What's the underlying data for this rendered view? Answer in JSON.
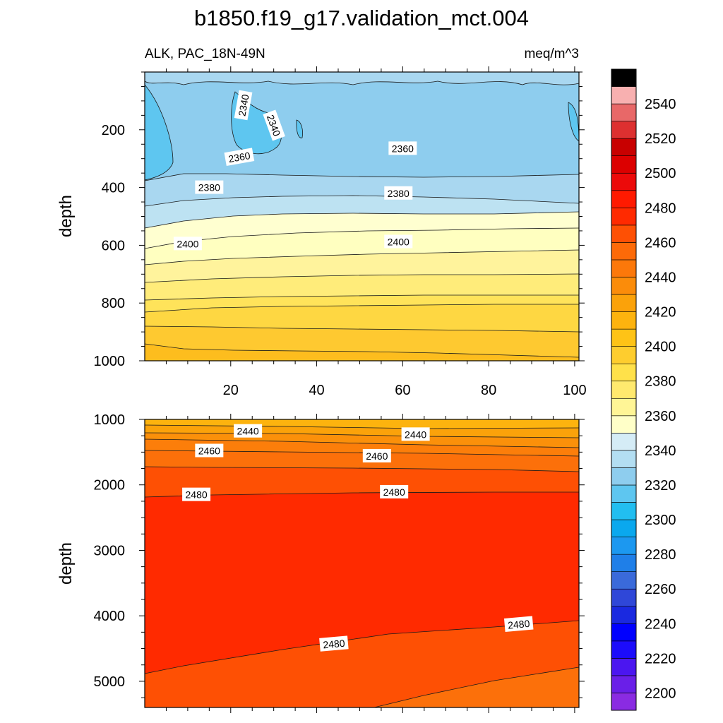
{
  "title": "b1850.f19_g17.validation_mct.004",
  "colors": {
    "levels": [
      "#8a2be2",
      "#6a1fe8",
      "#4b16f0",
      "#1c0cfb",
      "#0000ff",
      "#1a29e0",
      "#2f47d8",
      "#3a6ada",
      "#1f7fe8",
      "#1c98f0",
      "#0aa8ee",
      "#22bef0",
      "#5ec6f0",
      "#8ecdee",
      "#b3def2",
      "#d5ecf6",
      "#ffffc8",
      "#fff596",
      "#ffe96e",
      "#ffe14a",
      "#fecd2e",
      "#fec316",
      "#fdb30e",
      "#fba20a",
      "#fb8c0a",
      "#fc780a",
      "#fd6a08",
      "#fe5004",
      "#ff2a00",
      "#ff1a00",
      "#ec0a0a",
      "#dc0000",
      "#c80000",
      "#dd3030",
      "#e86868",
      "#f8b0b0"
    ],
    "frame": "#000000",
    "contour": "#1a1a1a"
  },
  "chart_data": [
    {
      "type": "contour",
      "panel": "upper",
      "left_title": "ALK, PAC_18N-49N",
      "right_title": "meq/m^3",
      "ylabel": "depth",
      "xlabel": "",
      "xlim": [
        0,
        101
      ],
      "ylim": [
        0,
        1000
      ],
      "y_reversed": true,
      "xticks": [
        20,
        40,
        60,
        80,
        100
      ],
      "yticks": [
        200,
        400,
        600,
        800,
        1000
      ],
      "contour_labels": [
        {
          "text": "2340",
          "x": 23,
          "y": 115,
          "rotate": -80
        },
        {
          "text": "2340",
          "x": 30,
          "y": 185,
          "rotate": 70
        },
        {
          "text": "2360",
          "x": 22,
          "y": 295,
          "rotate": -10
        },
        {
          "text": "2360",
          "x": 60,
          "y": 265,
          "rotate": 0
        },
        {
          "text": "2380",
          "x": 15,
          "y": 400,
          "rotate": 0
        },
        {
          "text": "2380",
          "x": 59,
          "y": 420,
          "rotate": 0
        },
        {
          "text": "2400",
          "x": 10,
          "y": 595,
          "rotate": 0
        },
        {
          "text": "2400",
          "x": 59,
          "y": 588,
          "rotate": 0
        }
      ]
    },
    {
      "type": "contour",
      "panel": "lower",
      "left_title": "",
      "right_title": "",
      "ylabel": "depth",
      "xlabel": "",
      "xlim": [
        0,
        101
      ],
      "ylim": [
        1000,
        5400
      ],
      "y_reversed": true,
      "xticks": [
        20,
        40,
        60,
        80,
        100
      ],
      "yticks": [
        1000,
        2000,
        3000,
        4000,
        5000
      ],
      "contour_labels": [
        {
          "text": "2440",
          "x": 24,
          "y": 1180,
          "rotate": 0
        },
        {
          "text": "2440",
          "x": 63,
          "y": 1230,
          "rotate": 0
        },
        {
          "text": "2460",
          "x": 15,
          "y": 1480,
          "rotate": 0
        },
        {
          "text": "2460",
          "x": 54,
          "y": 1560,
          "rotate": 0
        },
        {
          "text": "2480",
          "x": 12,
          "y": 2150,
          "rotate": 0
        },
        {
          "text": "2480",
          "x": 58,
          "y": 2110,
          "rotate": 0
        },
        {
          "text": "2480",
          "x": 44,
          "y": 4430,
          "rotate": -5
        },
        {
          "text": "2480",
          "x": 87,
          "y": 4130,
          "rotate": -5
        }
      ]
    }
  ],
  "colorbar": {
    "labels": [
      "2200",
      "2220",
      "2240",
      "2260",
      "2280",
      "2300",
      "2320",
      "2340",
      "2360",
      "2380",
      "2400",
      "2420",
      "2440",
      "2460",
      "2480",
      "2500",
      "2520",
      "2540"
    ],
    "min": 2190,
    "step": 10,
    "count": 37
  }
}
